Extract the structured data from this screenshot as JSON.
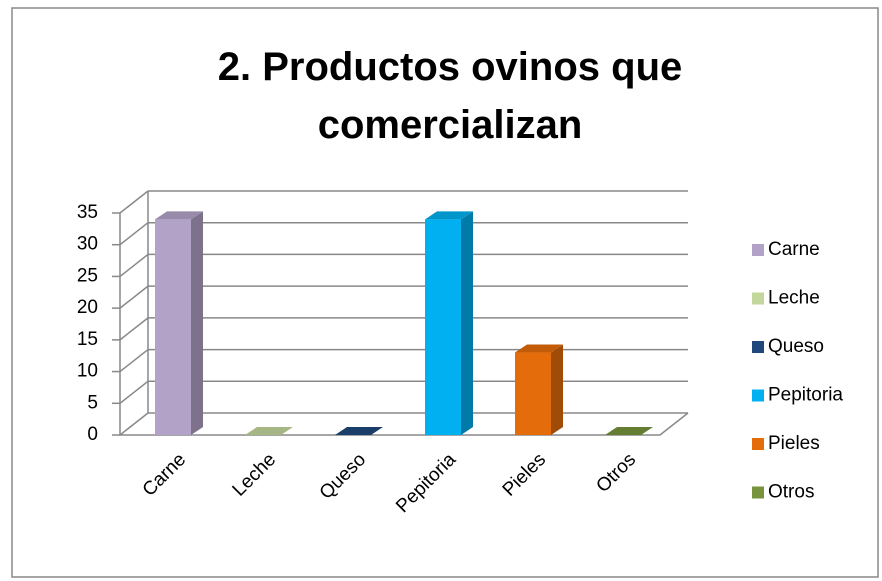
{
  "chart_data": {
    "type": "bar3d",
    "title": "2. Productos ovinos que comercializan",
    "categories": [
      "Carne",
      "Leche",
      "Queso",
      "Pepitoria",
      "Pieles",
      "Otros"
    ],
    "values": [
      34,
      0,
      0,
      34,
      13,
      0
    ],
    "colors": [
      "#b3a2c7",
      "#c3d69b",
      "#1f497d",
      "#00b0f0",
      "#e46c0a",
      "#77933c"
    ],
    "ylim": [
      0,
      35
    ],
    "yticks": [
      0,
      5,
      10,
      15,
      20,
      25,
      30,
      35
    ],
    "grid": true,
    "legend": "right"
  }
}
